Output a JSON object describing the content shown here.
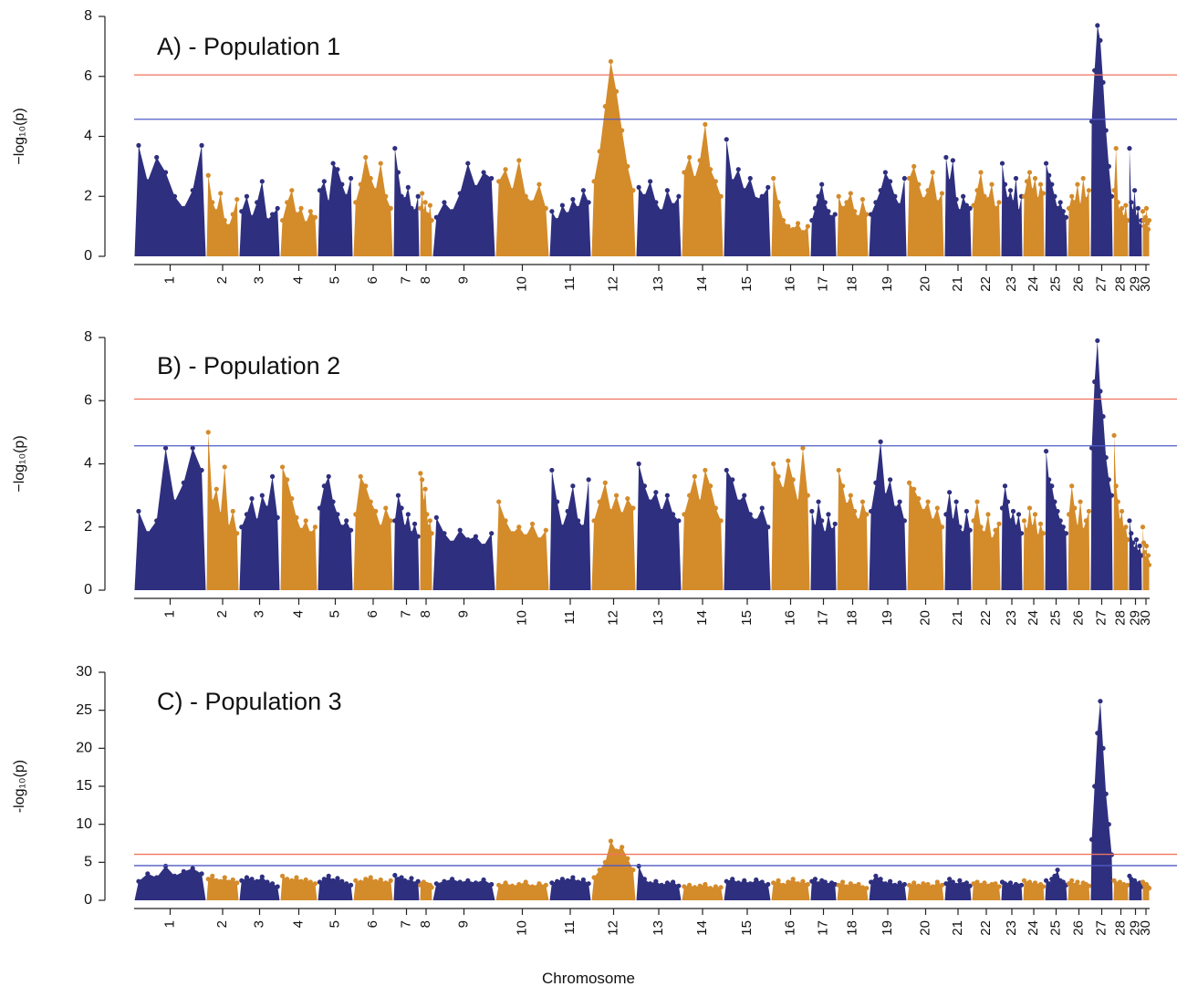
{
  "x_label": "Chromosome",
  "chart_data": [
    {
      "type": "manhattan",
      "title": "A) - Population 1",
      "y_label": "−log₁₀(p)",
      "categories": [
        "1",
        "2",
        "3",
        "4",
        "5",
        "6",
        "7",
        "8",
        "9",
        "10",
        "11",
        "12",
        "13",
        "14",
        "15",
        "16",
        "17",
        "18",
        "19",
        "20",
        "21",
        "22",
        "23",
        "24",
        "25",
        "26",
        "27",
        "28",
        "29",
        "30"
      ],
      "chromosome_lengths": [
        79,
        36,
        45,
        41,
        39,
        44,
        29,
        14,
        69,
        59,
        46,
        49,
        50,
        46,
        52,
        43,
        29,
        35,
        42,
        41,
        30,
        32,
        24,
        24,
        25,
        25,
        25,
        17,
        15,
        8
      ],
      "colors": [
        "#2e2f7f",
        "#d48b2a"
      ],
      "ylim": [
        0,
        8
      ],
      "yticks": [
        0,
        2,
        4,
        6,
        8
      ],
      "thresholds": [
        {
          "value": 6.05,
          "color": "#f0735f"
        },
        {
          "value": 4.57,
          "color": "#4f5bc4"
        }
      ],
      "values": [
        [
          3.7,
          2.5,
          3.3,
          2.8,
          2.0,
          1.6,
          2.2,
          3.7
        ],
        [
          2.7,
          1.8,
          1.5,
          2.1,
          1.2,
          1.0,
          1.4,
          1.9
        ],
        [
          1.5,
          2.0,
          1.3,
          1.8,
          2.5,
          1.2,
          1.4,
          1.6
        ],
        [
          1.2,
          1.8,
          2.2,
          1.4,
          1.6,
          1.1,
          1.5,
          1.3
        ],
        [
          2.2,
          2.5,
          1.8,
          3.1,
          2.9,
          2.4,
          2.0,
          2.6
        ],
        [
          1.8,
          2.4,
          3.3,
          2.6,
          2.2,
          3.1,
          2.0,
          1.6
        ],
        [
          3.6,
          2.8,
          2.0,
          1.9,
          2.3,
          1.6,
          1.5,
          2.0
        ],
        [
          1.6,
          2.1,
          1.5,
          1.8,
          1.4,
          1.3,
          1.7,
          1.2
        ],
        [
          1.3,
          1.8,
          1.5,
          2.1,
          3.1,
          2.3,
          2.8,
          2.6
        ],
        [
          2.5,
          2.9,
          2.2,
          3.2,
          2.0,
          1.8,
          2.4,
          1.6
        ],
        [
          1.5,
          1.2,
          1.7,
          1.4,
          1.9,
          1.6,
          2.2,
          1.8
        ],
        [
          2.5,
          3.5,
          5.0,
          6.5,
          5.5,
          4.2,
          3.0,
          2.2
        ],
        [
          2.3,
          2.0,
          2.5,
          1.8,
          1.5,
          2.2,
          1.7,
          2.0
        ],
        [
          2.8,
          3.3,
          2.6,
          3.2,
          4.4,
          2.9,
          2.5,
          2.0
        ],
        [
          3.9,
          2.5,
          2.9,
          2.2,
          2.6,
          1.9,
          2.0,
          2.3
        ],
        [
          2.6,
          1.8,
          1.2,
          1.0,
          0.9,
          1.1,
          0.8,
          1.0
        ],
        [
          1.2,
          1.6,
          2.0,
          2.4,
          1.8,
          1.5,
          1.3,
          1.4
        ],
        [
          2.0,
          1.6,
          1.8,
          2.1,
          1.5,
          1.3,
          1.9,
          1.4
        ],
        [
          1.4,
          1.8,
          2.2,
          2.8,
          2.5,
          2.0,
          1.7,
          2.6
        ],
        [
          2.6,
          3.0,
          2.4,
          1.9,
          2.2,
          2.8,
          1.8,
          2.1
        ],
        [
          3.3,
          2.5,
          3.2,
          1.9,
          1.5,
          2.0,
          1.7,
          1.6
        ],
        [
          1.7,
          2.2,
          2.8,
          2.0,
          1.9,
          2.4,
          1.6,
          1.8
        ],
        [
          3.1,
          2.4,
          1.9,
          2.2,
          1.8,
          2.6,
          1.5,
          2.0
        ],
        [
          2.0,
          2.5,
          2.8,
          2.2,
          2.6,
          1.9,
          2.4,
          2.1
        ],
        [
          3.1,
          2.7,
          2.4,
          2.0,
          1.6,
          1.8,
          1.5,
          1.3
        ],
        [
          1.6,
          2.0,
          1.8,
          2.4,
          1.7,
          2.6,
          1.9,
          2.2
        ],
        [
          4.5,
          6.2,
          7.7,
          7.2,
          5.8,
          4.2,
          3.0,
          2.0
        ],
        [
          2.2,
          3.6,
          1.8,
          1.5,
          1.6,
          1.3,
          1.7,
          1.2
        ],
        [
          3.6,
          1.8,
          1.5,
          2.2,
          1.3,
          1.6,
          1.0,
          1.2
        ],
        [
          1.5,
          1.2,
          1.0,
          1.3,
          1.6,
          1.1,
          0.9,
          1.2
        ]
      ]
    },
    {
      "type": "manhattan",
      "title": "B) - Population 2",
      "y_label": "−log₁₀(p)",
      "categories": [
        "1",
        "2",
        "3",
        "4",
        "5",
        "6",
        "7",
        "8",
        "9",
        "10",
        "11",
        "12",
        "13",
        "14",
        "15",
        "16",
        "17",
        "18",
        "19",
        "20",
        "21",
        "22",
        "23",
        "24",
        "25",
        "26",
        "27",
        "28",
        "29",
        "30"
      ],
      "chromosome_lengths": [
        79,
        36,
        45,
        41,
        39,
        44,
        29,
        14,
        69,
        59,
        46,
        49,
        50,
        46,
        52,
        43,
        29,
        35,
        42,
        41,
        30,
        32,
        24,
        24,
        25,
        25,
        25,
        17,
        15,
        8
      ],
      "colors": [
        "#2e2f7f",
        "#d48b2a"
      ],
      "ylim": [
        0,
        8
      ],
      "yticks": [
        0,
        2,
        4,
        6,
        8
      ],
      "thresholds": [
        {
          "value": 6.05,
          "color": "#f0735f"
        },
        {
          "value": 4.57,
          "color": "#4f5bc4"
        }
      ],
      "values": [
        [
          2.5,
          1.8,
          2.2,
          4.5,
          2.8,
          3.4,
          4.5,
          3.8
        ],
        [
          5.0,
          2.8,
          3.2,
          2.4,
          3.9,
          2.0,
          2.5,
          1.8
        ],
        [
          2.0,
          2.4,
          2.9,
          2.2,
          3.0,
          2.6,
          3.6,
          2.3
        ],
        [
          3.9,
          3.5,
          2.9,
          2.3,
          1.9,
          2.2,
          1.8,
          2.0
        ],
        [
          2.6,
          3.3,
          3.6,
          2.8,
          2.4,
          2.0,
          2.2,
          1.9
        ],
        [
          2.4,
          3.6,
          3.3,
          2.8,
          2.5,
          2.0,
          2.6,
          2.2
        ],
        [
          2.2,
          3.0,
          2.6,
          2.0,
          2.4,
          1.8,
          2.1,
          1.7
        ],
        [
          3.7,
          3.5,
          2.8,
          3.2,
          2.4,
          2.0,
          2.2,
          1.8
        ],
        [
          2.3,
          1.8,
          1.5,
          1.9,
          1.6,
          1.7,
          1.4,
          1.8
        ],
        [
          2.8,
          2.2,
          1.8,
          2.0,
          1.7,
          2.1,
          1.6,
          1.9
        ],
        [
          3.8,
          2.8,
          2.0,
          2.5,
          3.3,
          2.2,
          2.0,
          3.5
        ],
        [
          2.2,
          2.8,
          3.4,
          2.5,
          3.0,
          2.4,
          2.9,
          2.6
        ],
        [
          4.0,
          3.3,
          2.8,
          3.1,
          2.5,
          3.0,
          2.4,
          2.2
        ],
        [
          2.4,
          3.0,
          3.6,
          2.8,
          3.8,
          3.3,
          2.6,
          2.2
        ],
        [
          3.8,
          3.5,
          2.8,
          3.0,
          2.4,
          2.2,
          2.6,
          2.0
        ],
        [
          4.0,
          3.6,
          3.2,
          4.1,
          3.5,
          2.8,
          4.5,
          3.0
        ],
        [
          2.5,
          2.0,
          2.8,
          2.2,
          1.8,
          2.4,
          1.9,
          2.1
        ],
        [
          3.8,
          3.3,
          2.7,
          3.0,
          2.5,
          2.2,
          2.8,
          2.4
        ],
        [
          2.5,
          3.4,
          4.7,
          3.0,
          3.5,
          2.6,
          2.8,
          2.2
        ],
        [
          3.4,
          3.2,
          2.9,
          2.5,
          2.8,
          2.2,
          2.6,
          2.0
        ],
        [
          2.4,
          3.1,
          2.2,
          2.8,
          2.0,
          1.8,
          2.5,
          1.9
        ],
        [
          2.2,
          2.8,
          2.0,
          1.8,
          2.4,
          1.6,
          1.9,
          2.1
        ],
        [
          2.6,
          3.3,
          2.8,
          2.2,
          2.5,
          2.0,
          2.4,
          1.8
        ],
        [
          2.2,
          1.9,
          2.6,
          2.0,
          2.4,
          1.7,
          2.1,
          1.8
        ],
        [
          4.4,
          3.5,
          3.3,
          2.8,
          2.5,
          2.2,
          2.0,
          1.8
        ],
        [
          2.4,
          3.3,
          2.6,
          2.0,
          2.8,
          1.9,
          2.2,
          2.5
        ],
        [
          4.5,
          6.6,
          7.9,
          6.3,
          5.5,
          4.2,
          3.5,
          3.0
        ],
        [
          4.9,
          3.3,
          2.8,
          2.2,
          2.5,
          1.9,
          2.0,
          1.6
        ],
        [
          2.2,
          1.8,
          1.5,
          1.3,
          1.6,
          1.2,
          1.4,
          1.1
        ],
        [
          2.0,
          1.5,
          1.2,
          1.0,
          1.4,
          0.9,
          1.1,
          0.8
        ]
      ]
    },
    {
      "type": "manhattan",
      "title": "C) - Population 3",
      "y_label": "-log₁₀(p)",
      "categories": [
        "1",
        "2",
        "3",
        "4",
        "5",
        "6",
        "7",
        "8",
        "9",
        "10",
        "11",
        "12",
        "13",
        "14",
        "15",
        "16",
        "17",
        "18",
        "19",
        "20",
        "21",
        "22",
        "23",
        "24",
        "25",
        "26",
        "27",
        "28",
        "29",
        "30"
      ],
      "chromosome_lengths": [
        79,
        36,
        45,
        41,
        39,
        44,
        29,
        14,
        69,
        59,
        46,
        49,
        50,
        46,
        52,
        43,
        29,
        35,
        42,
        41,
        30,
        32,
        24,
        24,
        25,
        25,
        25,
        17,
        15,
        8
      ],
      "colors": [
        "#2e2f7f",
        "#d48b2a"
      ],
      "ylim": [
        0,
        30
      ],
      "yticks": [
        0,
        5,
        10,
        15,
        20,
        25,
        30
      ],
      "thresholds": [
        {
          "value": 6.05,
          "color": "#f0735f"
        },
        {
          "value": 4.57,
          "color": "#4f5bc4"
        }
      ],
      "values": [
        [
          2.5,
          3.5,
          3.0,
          4.5,
          3.2,
          3.8,
          4.2,
          3.5
        ],
        [
          2.8,
          3.2,
          2.6,
          2.5,
          3.0,
          2.4,
          2.7,
          2.3
        ],
        [
          2.6,
          3.0,
          2.8,
          2.5,
          3.1,
          2.4,
          2.2,
          1.8
        ],
        [
          3.2,
          2.8,
          2.6,
          3.0,
          2.5,
          2.7,
          2.4,
          2.2
        ],
        [
          2.4,
          2.8,
          3.2,
          2.6,
          2.9,
          2.5,
          2.2,
          2.0
        ],
        [
          2.6,
          2.4,
          2.8,
          3.0,
          2.5,
          2.7,
          2.3,
          2.6
        ],
        [
          3.3,
          2.8,
          3.0,
          2.6,
          2.4,
          2.9,
          2.2,
          2.5
        ],
        [
          2.0,
          2.2,
          2.4,
          1.8,
          2.1,
          1.9,
          2.0,
          1.7
        ],
        [
          2.2,
          2.5,
          2.8,
          2.4,
          2.6,
          2.3,
          2.7,
          2.1
        ],
        [
          2.0,
          2.3,
          1.9,
          2.1,
          2.4,
          1.8,
          2.2,
          2.0
        ],
        [
          2.3,
          2.5,
          2.8,
          2.6,
          3.0,
          2.4,
          2.7,
          2.2
        ],
        [
          3.0,
          4.0,
          5.0,
          7.8,
          6.5,
          7.0,
          5.5,
          4.0
        ],
        [
          4.5,
          2.8,
          2.2,
          2.5,
          2.0,
          2.3,
          2.4,
          1.9
        ],
        [
          1.8,
          2.0,
          1.7,
          1.9,
          2.1,
          1.6,
          1.8,
          1.7
        ],
        [
          2.5,
          2.8,
          2.3,
          2.6,
          2.2,
          2.7,
          2.4,
          2.1
        ],
        [
          2.3,
          2.6,
          2.0,
          2.4,
          2.8,
          2.2,
          2.5,
          2.1
        ],
        [
          2.5,
          2.8,
          2.2,
          2.6,
          2.4,
          2.0,
          2.3,
          2.1
        ],
        [
          2.0,
          2.4,
          1.8,
          2.2,
          1.9,
          2.1,
          1.7,
          1.6
        ],
        [
          2.4,
          3.2,
          2.8,
          2.2,
          2.5,
          2.0,
          2.3,
          2.1
        ],
        [
          2.0,
          2.3,
          1.9,
          2.2,
          2.1,
          1.8,
          2.4,
          2.0
        ],
        [
          2.2,
          2.8,
          2.4,
          2.0,
          2.6,
          2.1,
          2.3,
          1.9
        ],
        [
          2.2,
          2.4,
          2.0,
          2.3,
          1.9,
          2.1,
          2.2,
          1.8
        ],
        [
          2.4,
          2.2,
          2.0,
          2.3,
          1.8,
          2.1,
          1.9,
          2.0
        ],
        [
          2.6,
          2.2,
          2.4,
          2.0,
          2.3,
          1.9,
          2.1,
          1.8
        ],
        [
          2.6,
          2.2,
          2.8,
          3.2,
          4.0,
          2.6,
          2.4,
          2.0
        ],
        [
          2.2,
          2.6,
          2.0,
          2.4,
          1.8,
          2.3,
          2.1,
          1.9
        ],
        [
          8.0,
          15.0,
          22.0,
          26.2,
          20.0,
          14.0,
          10.0,
          6.0
        ],
        [
          2.6,
          2.2,
          2.0,
          2.4,
          1.8,
          2.1,
          1.9,
          2.0
        ],
        [
          3.2,
          2.8,
          2.4,
          2.6,
          2.2,
          2.0,
          2.3,
          1.8
        ],
        [
          2.4,
          2.2,
          2.0,
          1.9,
          2.1,
          1.8,
          1.7,
          1.6
        ]
      ]
    }
  ]
}
